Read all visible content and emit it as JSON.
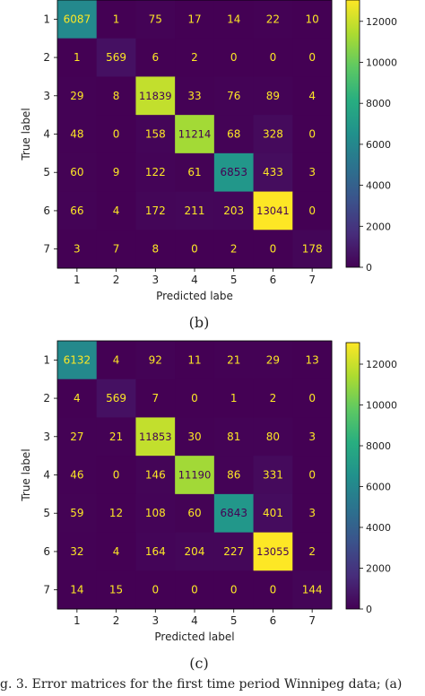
{
  "figure_caption": "g. 3.  Error matrices for the first time period Winnipeg data; (a)",
  "chart_data": [
    {
      "type": "heatmap",
      "caption": "(b)",
      "xlabel": "Predicted labe",
      "ylabel": "True label",
      "x_ticks": [
        "1",
        "2",
        "3",
        "4",
        "5",
        "6",
        "7"
      ],
      "y_ticks": [
        "1",
        "2",
        "3",
        "4",
        "5",
        "6",
        "7"
      ],
      "values": [
        [
          6087,
          1,
          75,
          17,
          14,
          22,
          10
        ],
        [
          1,
          569,
          6,
          2,
          0,
          0,
          0
        ],
        [
          29,
          8,
          11839,
          33,
          76,
          89,
          4
        ],
        [
          48,
          0,
          158,
          11214,
          68,
          328,
          0
        ],
        [
          60,
          9,
          122,
          61,
          6853,
          433,
          3
        ],
        [
          66,
          4,
          172,
          211,
          203,
          13041,
          0
        ],
        [
          3,
          7,
          8,
          0,
          2,
          0,
          178
        ]
      ],
      "colorbar": {
        "colormap": "viridis",
        "range": [
          0,
          13041
        ],
        "ticks": [
          "12000",
          "10000",
          "8000",
          "6000",
          "4000",
          "2000",
          "0"
        ]
      }
    },
    {
      "type": "heatmap",
      "caption": "(c)",
      "xlabel": "Predicted label",
      "ylabel": "True label",
      "x_ticks": [
        "1",
        "2",
        "3",
        "4",
        "5",
        "6",
        "7"
      ],
      "y_ticks": [
        "1",
        "2",
        "3",
        "4",
        "5",
        "6",
        "7"
      ],
      "values": [
        [
          6132,
          4,
          92,
          11,
          21,
          29,
          13
        ],
        [
          4,
          569,
          7,
          0,
          1,
          2,
          0
        ],
        [
          27,
          21,
          11853,
          30,
          81,
          80,
          3
        ],
        [
          46,
          0,
          146,
          11190,
          86,
          331,
          0
        ],
        [
          59,
          12,
          108,
          60,
          6843,
          401,
          3
        ],
        [
          32,
          4,
          164,
          204,
          227,
          13055,
          2
        ],
        [
          14,
          15,
          0,
          0,
          0,
          0,
          144
        ]
      ],
      "colorbar": {
        "colormap": "viridis",
        "range": [
          0,
          13055
        ],
        "ticks": [
          "12000",
          "10000",
          "8000",
          "6000",
          "4000",
          "2000",
          "0"
        ]
      }
    }
  ]
}
